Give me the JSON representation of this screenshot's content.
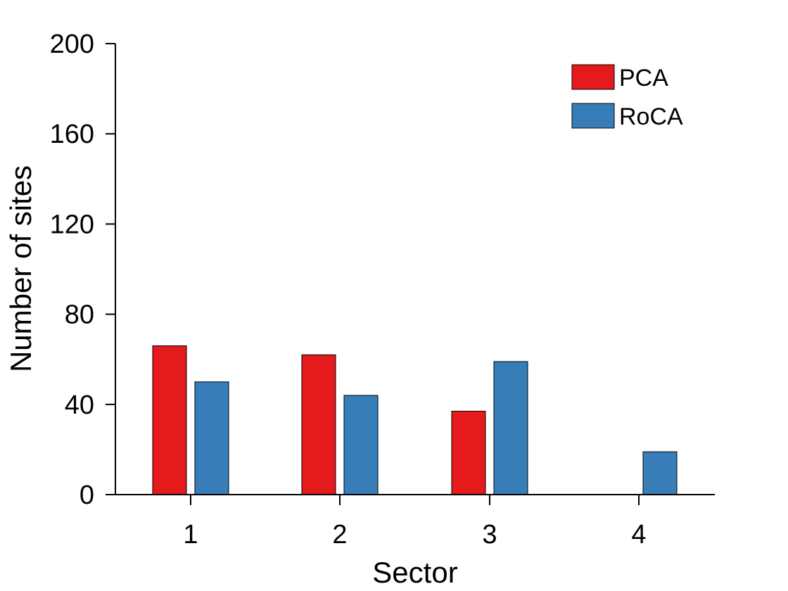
{
  "chart_data": {
    "type": "bar",
    "categories": [
      "1",
      "2",
      "3",
      "4"
    ],
    "series": [
      {
        "name": "PCA",
        "color": "#e41a1c",
        "values": [
          66,
          62,
          37,
          null
        ]
      },
      {
        "name": "RoCA",
        "color": "#377eb8",
        "values": [
          50,
          44,
          59,
          19
        ]
      }
    ],
    "xlabel": "Sector",
    "ylabel": "Number of sites",
    "ylim": [
      0,
      200
    ],
    "yticks": [
      0,
      40,
      80,
      120,
      160,
      200
    ],
    "grid": false,
    "legend_position": "top-right"
  }
}
